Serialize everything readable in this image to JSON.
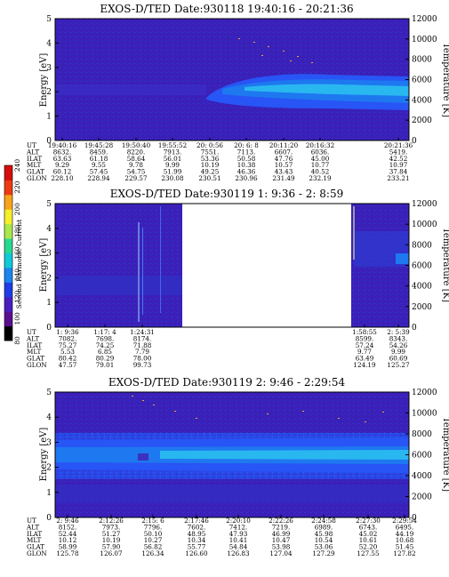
{
  "colors": {
    "background": "#3a20b8",
    "band_mid": "#1e78f0",
    "band_core": "#29b7f0",
    "band_low": "#2855f5",
    "gap": "#ffffff"
  },
  "colorbar": {
    "label": "Second Harmonic Current",
    "ticks": [
      "80",
      "100",
      "120",
      "140",
      "160",
      "180",
      "200",
      "220",
      "240"
    ],
    "colors": [
      "#000000",
      "#5a0f8f",
      "#4a1fc0",
      "#1f3de6",
      "#1b86f0",
      "#11c9d8",
      "#28d890",
      "#a8e84a",
      "#f5ee2a",
      "#f7a31c",
      "#ee3a12",
      "#d60d0d"
    ]
  },
  "chart_data": [
    {
      "type": "heatmap",
      "title": "EXOS-D/TED  Date:930118  19:40:16 - 20:21:36",
      "ylabel": "Energy [eV]",
      "y2label": "Temperature [K]",
      "ylim": [
        0,
        5
      ],
      "y_ticks": [
        "0",
        "1",
        "2",
        "3",
        "4",
        "5"
      ],
      "y2lim": [
        0,
        12000
      ],
      "y2_ticks": [
        "0",
        "2000",
        "4000",
        "6000",
        "8000",
        "10000",
        "12000"
      ],
      "row_labels": [
        "UT",
        "ALT",
        "ILAT",
        "MLT",
        "GLAT",
        "GLON"
      ],
      "columns": [
        [
          "19:40:16",
          "8632.",
          "63.63",
          "9.29",
          "60.12",
          "228.10"
        ],
        [
          "19:45:28",
          "8459.",
          "61.18",
          "9.55",
          "57.45",
          "228.94"
        ],
        [
          "19:50:40",
          "8220.",
          "58.64",
          "9.78",
          "54.75",
          "229.57"
        ],
        [
          "19:55:52",
          "7913.",
          "56.01",
          "9.99",
          "51.99",
          "230.08"
        ],
        [
          "20: 0:56",
          "7551.",
          "53.36",
          "10.19",
          "49.25",
          "230.51"
        ],
        [
          "20: 6: 8",
          "7113.",
          "50.58",
          "10.38",
          "46.36",
          "230.96"
        ],
        [
          "20:11:20",
          "6607.",
          "47.76",
          "10.57",
          "43.43",
          "231.49"
        ],
        [
          "20:16:32",
          "6036.",
          "45.00",
          "10.77",
          "40.52",
          "232.19"
        ],
        [
          "20:21:36",
          "5419.",
          "42.52",
          "10.97",
          "37.84",
          "233.21"
        ]
      ]
    },
    {
      "type": "heatmap",
      "title": "EXOS-D/TED  Date:930119  1: 9:36 - 2: 8:59",
      "ylabel": "Energy [eV]",
      "y2label": "Temperature [K]",
      "ylim": [
        0,
        5
      ],
      "y_ticks": [
        "0",
        "1",
        "2",
        "3",
        "4",
        "5"
      ],
      "y2lim": [
        0,
        12000
      ],
      "y2_ticks": [
        "0",
        "2000",
        "4000",
        "6000",
        "8000",
        "10000",
        "12000"
      ],
      "row_labels": [
        "UT",
        "ALT",
        "ILAT",
        "MLT",
        "GLAT",
        "GLON"
      ],
      "columns": [
        [
          "1: 9:36",
          "7082.",
          "75.27",
          "5.53",
          "80.42",
          "47.57"
        ],
        [
          "1:17: 4",
          "7698.",
          "74.25",
          "6.85",
          "80.29",
          "79.01"
        ],
        [
          "1:24:31",
          "8174.",
          "71.88",
          "7.79",
          "78.00",
          "99.73"
        ],
        [
          "1:58:55",
          "8599.",
          "57.24",
          "9.77",
          "63.49",
          "124.19"
        ],
        [
          "2: 5:39",
          "8343.",
          "54.26",
          "9.99",
          "60.69",
          "125.27"
        ]
      ]
    },
    {
      "type": "heatmap",
      "title": "EXOS-D/TED  Date:930119  2: 9:46 - 2:29:54",
      "ylabel": "Energy [eV]",
      "y2label": "Temperature [K]",
      "ylim": [
        0,
        5
      ],
      "y_ticks": [
        "0",
        "1",
        "2",
        "3",
        "4",
        "5"
      ],
      "y2lim": [
        0,
        12000
      ],
      "y2_ticks": [
        "0",
        "2000",
        "4000",
        "6000",
        "8000",
        "10000",
        "12000"
      ],
      "row_labels": [
        "UT",
        "ALT",
        "ILAT",
        "MLT",
        "GLAT",
        "GLON"
      ],
      "columns": [
        [
          "2: 9:46",
          "8152.",
          "52.44",
          "10.12",
          "58.99",
          "125.78"
        ],
        [
          "2:12:26",
          "7973.",
          "51.27",
          "10.19",
          "57.90",
          "126.07"
        ],
        [
          "2:15: 6",
          "7796.",
          "50.10",
          "10.27",
          "56.82",
          "126.34"
        ],
        [
          "2:17:46",
          "7602.",
          "48.95",
          "10.34",
          "55.77",
          "126.60"
        ],
        [
          "2:20:10",
          "7412.",
          "47.93",
          "10.41",
          "54.84",
          "126.83"
        ],
        [
          "2:22:26",
          "7219.",
          "46.99",
          "10.47",
          "53.98",
          "127.04"
        ],
        [
          "2:24:58",
          "6989.",
          "45.98",
          "10.54",
          "53.06",
          "127.29"
        ],
        [
          "2:27:30",
          "6743.",
          "45.02",
          "10.61",
          "52.20",
          "127.55"
        ],
        [
          "2:29:54",
          "6495.",
          "44.19",
          "10.68",
          "51.45",
          "127.82"
        ]
      ]
    }
  ]
}
